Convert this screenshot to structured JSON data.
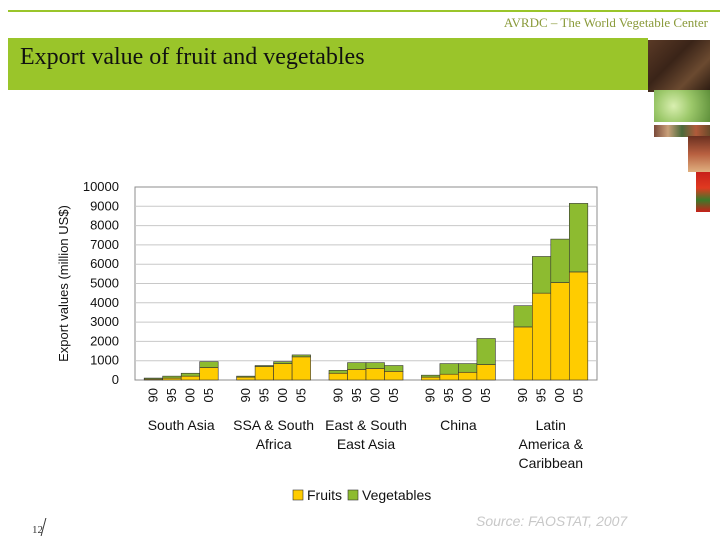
{
  "header": {
    "org_name": "AVRDC – The World Vegetable Center",
    "title": "Export value of fruit and vegetables"
  },
  "footer": {
    "page_number": "12",
    "source": "Source: FAOSTAT, 2007"
  },
  "colors": {
    "accent": "#9ac52a",
    "fruits": "#ffcc00",
    "vegetables": "#8dbb30"
  },
  "chart_data": {
    "type": "bar",
    "stacked": true,
    "title": "",
    "xlabel": "",
    "ylabel": "Export values (million US$)",
    "ylim": [
      0,
      10000
    ],
    "yticks": [
      0,
      1000,
      2000,
      3000,
      4000,
      5000,
      6000,
      7000,
      8000,
      9000,
      10000
    ],
    "grid": true,
    "legend_position": "bottom",
    "groups": [
      {
        "label": "South Asia",
        "label_lines": [
          "South Asia"
        ],
        "years": [
          "90",
          "95",
          "00",
          "05"
        ]
      },
      {
        "label": "SSA & South Africa",
        "label_lines": [
          "SSA & South",
          "Africa"
        ],
        "years": [
          "90",
          "95",
          "00",
          "05"
        ]
      },
      {
        "label": "East & South East Asia",
        "label_lines": [
          "East & South",
          "East Asia"
        ],
        "years": [
          "90",
          "95",
          "00",
          "05"
        ]
      },
      {
        "label": "China",
        "label_lines": [
          "China"
        ],
        "years": [
          "90",
          "95",
          "00",
          "05"
        ]
      },
      {
        "label": "Latin America & Caribbean",
        "label_lines": [
          "Latin",
          "America &",
          "Caribbean"
        ],
        "years": [
          "90",
          "95",
          "00",
          "05"
        ]
      }
    ],
    "series": [
      {
        "name": "Fruits",
        "values": [
          [
            50,
            100,
            200,
            650
          ],
          [
            150,
            700,
            850,
            1200
          ],
          [
            350,
            550,
            600,
            450
          ],
          [
            150,
            300,
            400,
            800
          ],
          [
            2750,
            4500,
            5050,
            5600
          ]
        ]
      },
      {
        "name": "Vegetables",
        "values": [
          [
            50,
            100,
            150,
            300
          ],
          [
            50,
            50,
            100,
            100
          ],
          [
            150,
            350,
            300,
            300
          ],
          [
            100,
            550,
            450,
            1350
          ],
          [
            1100,
            1900,
            2250,
            3550
          ]
        ]
      }
    ]
  }
}
